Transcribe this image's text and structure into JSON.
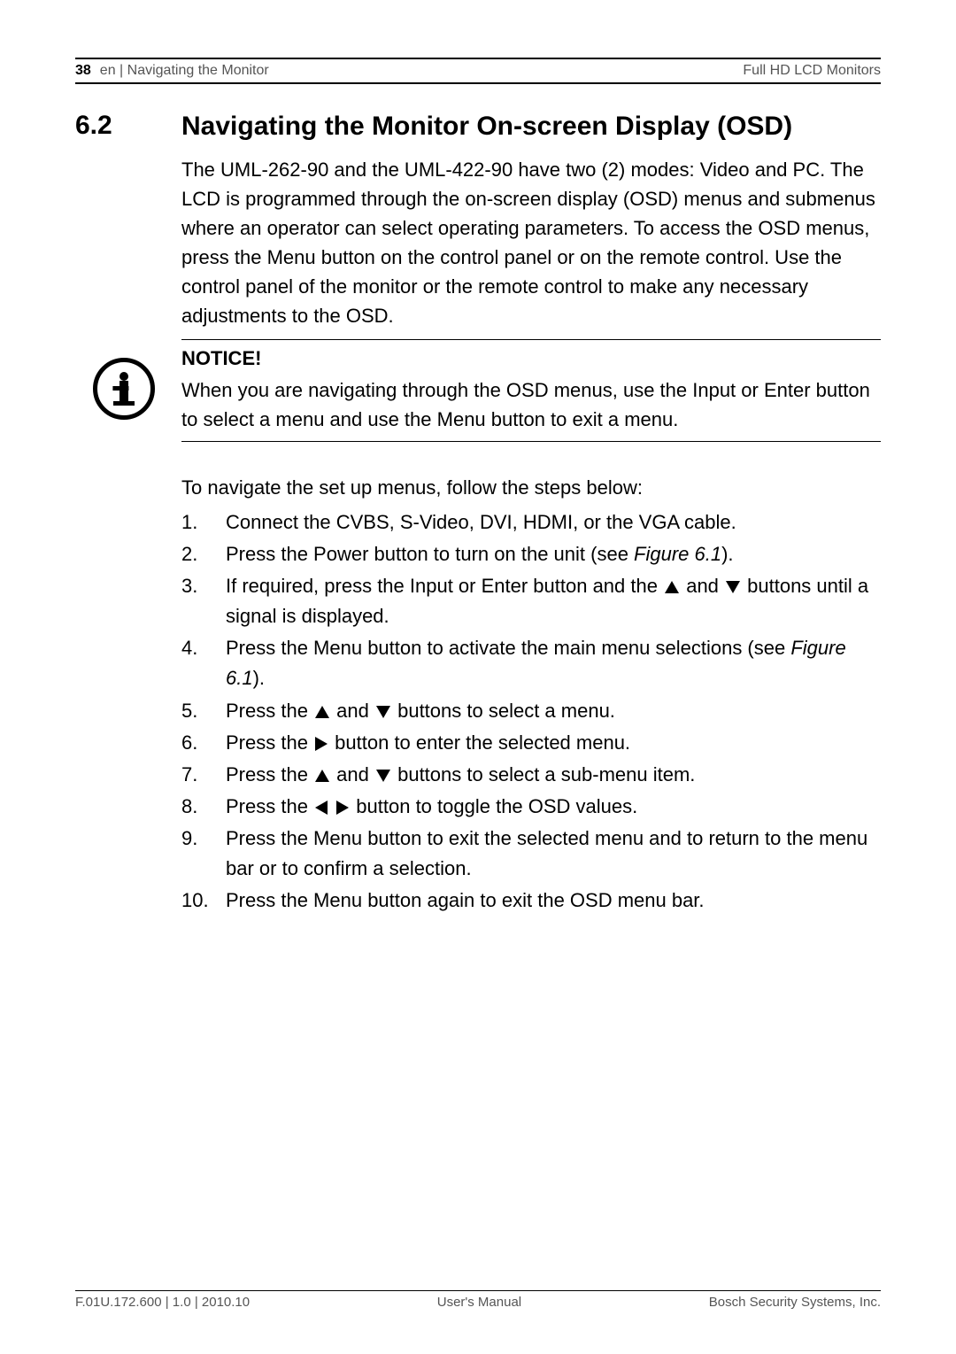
{
  "header": {
    "page_number": "38",
    "breadcrumb": "en | Navigating the Monitor",
    "doc_title": "Full HD LCD Monitors"
  },
  "section": {
    "number": "6.2",
    "title": "Navigating the Monitor On-screen Display (OSD)"
  },
  "intro_text": "The UML-262-90 and the UML-422-90 have two (2) modes: Video and PC. The LCD is programmed through the on-screen display (OSD) menus and submenus where an operator can select operating parameters. To access the OSD menus, press the Menu button on the control panel or on the remote control. Use the control panel of the monitor or the remote control to make any necessary adjustments to the OSD.",
  "notice": {
    "title": "NOTICE!",
    "text": "When you are navigating through the OSD menus, use the Input or Enter button to select a menu and use the Menu button to exit a menu."
  },
  "steps_intro": "To navigate the set up menus, follow the steps below:",
  "steps": [
    {
      "n": "1.",
      "pre": "Connect the CVBS, S-Video, DVI, HDMI, or the VGA cable."
    },
    {
      "n": "2.",
      "pre": "Press the Power button to turn on the unit (see ",
      "fig": "Figure 6.1",
      "post": ")."
    },
    {
      "n": "3.",
      "pre": "If required, press the Input or Enter button and the ",
      "icons1": "up",
      "mid": " and ",
      "icons2": "down",
      "post": " buttons until a signal is displayed."
    },
    {
      "n": "4.",
      "pre": "Press the Menu button to activate the main menu selections (see ",
      "fig": "Figure 6.1",
      "post": ")."
    },
    {
      "n": "5.",
      "pre": "Press the ",
      "icons1": "up",
      "mid": " and ",
      "icons2": "down",
      "post": " buttons to select a menu."
    },
    {
      "n": "6.",
      "pre": "Press the ",
      "icons1": "right",
      "post": " button to enter the selected menu."
    },
    {
      "n": "7.",
      "pre": "Press the ",
      "icons1": "up",
      "mid": " and ",
      "icons2": "down",
      "post": " buttons to select a sub-menu item."
    },
    {
      "n": "8.",
      "pre": "Press the ",
      "icons1": "left",
      "icons1b": "right",
      "post": " button to toggle the OSD values."
    },
    {
      "n": "9.",
      "pre": "Press the Menu button to exit the selected menu and to return to the menu bar or to confirm a selection."
    },
    {
      "n": "10.",
      "pre": "Press the Menu button again to exit the OSD menu bar."
    }
  ],
  "footer": {
    "left": "F.01U.172.600 | 1.0 | 2010.10",
    "center": "User's Manual",
    "right": "Bosch Security Systems, Inc."
  },
  "typography": {
    "body_fontsize": 22,
    "heading_fontsize": 30,
    "header_footer_fontsize": 16,
    "text_color": "#000000",
    "muted_color": "#555555",
    "background": "#ffffff"
  }
}
